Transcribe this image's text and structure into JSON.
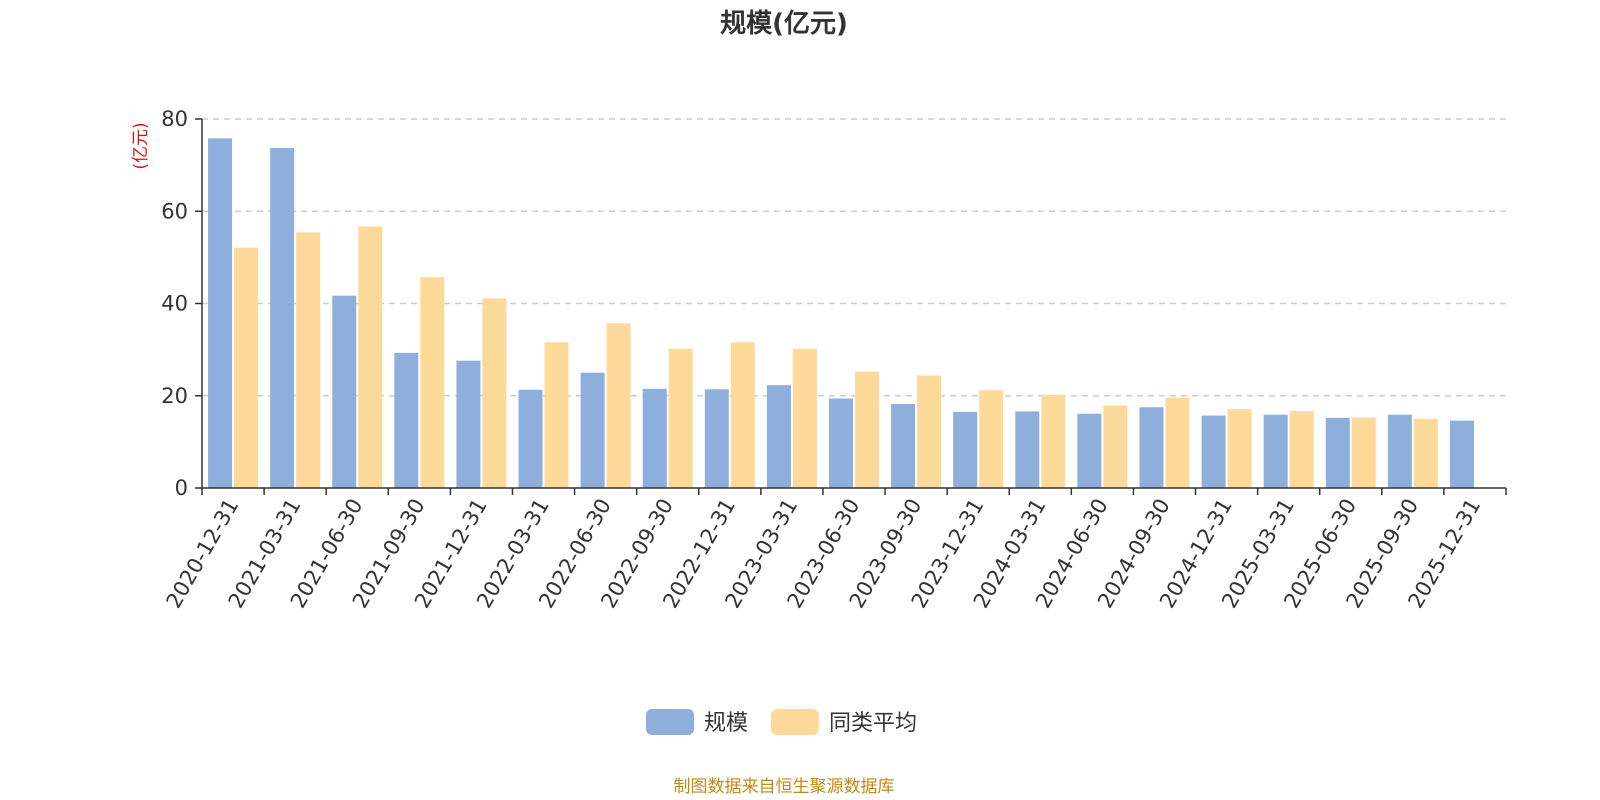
{
  "chart_data": {
    "type": "bar",
    "title": "规模(亿元)",
    "ylabel": "(亿元)",
    "ylim": [
      0,
      80
    ],
    "yticks": [
      0,
      20,
      40,
      60,
      80
    ],
    "grid": true,
    "legend_position": "bottom-center",
    "categories": [
      "2020-12-31",
      "2021-03-31",
      "2021-06-30",
      "2021-09-30",
      "2021-12-31",
      "2022-03-31",
      "2022-06-30",
      "2022-09-30",
      "2022-12-31",
      "2023-03-31",
      "2023-06-30",
      "2023-09-30",
      "2023-12-31",
      "2024-03-31",
      "2024-06-30",
      "2024-09-30",
      "2024-12-31",
      "2025-03-31",
      "2025-06-30",
      "2025-09-30",
      "2025-12-31"
    ],
    "series": [
      {
        "name": "规模",
        "color": "#8eaedb",
        "values": [
          75.8,
          73.7,
          41.7,
          29.3,
          27.6,
          21.3,
          25.0,
          21.5,
          21.4,
          22.3,
          19.4,
          18.2,
          16.5,
          16.6,
          16.1,
          17.5,
          15.7,
          15.9,
          15.2,
          15.9,
          14.6
        ]
      },
      {
        "name": "同类平均",
        "color": "#fdd99a",
        "values": [
          52.1,
          55.4,
          56.7,
          45.7,
          41.1,
          31.6,
          35.7,
          30.2,
          31.6,
          30.2,
          25.2,
          24.4,
          21.2,
          20.2,
          17.9,
          19.6,
          17.1,
          16.7,
          15.3,
          15.0,
          null
        ]
      }
    ]
  },
  "footer": {
    "source": "制图数据来自恒生聚源数据库"
  }
}
